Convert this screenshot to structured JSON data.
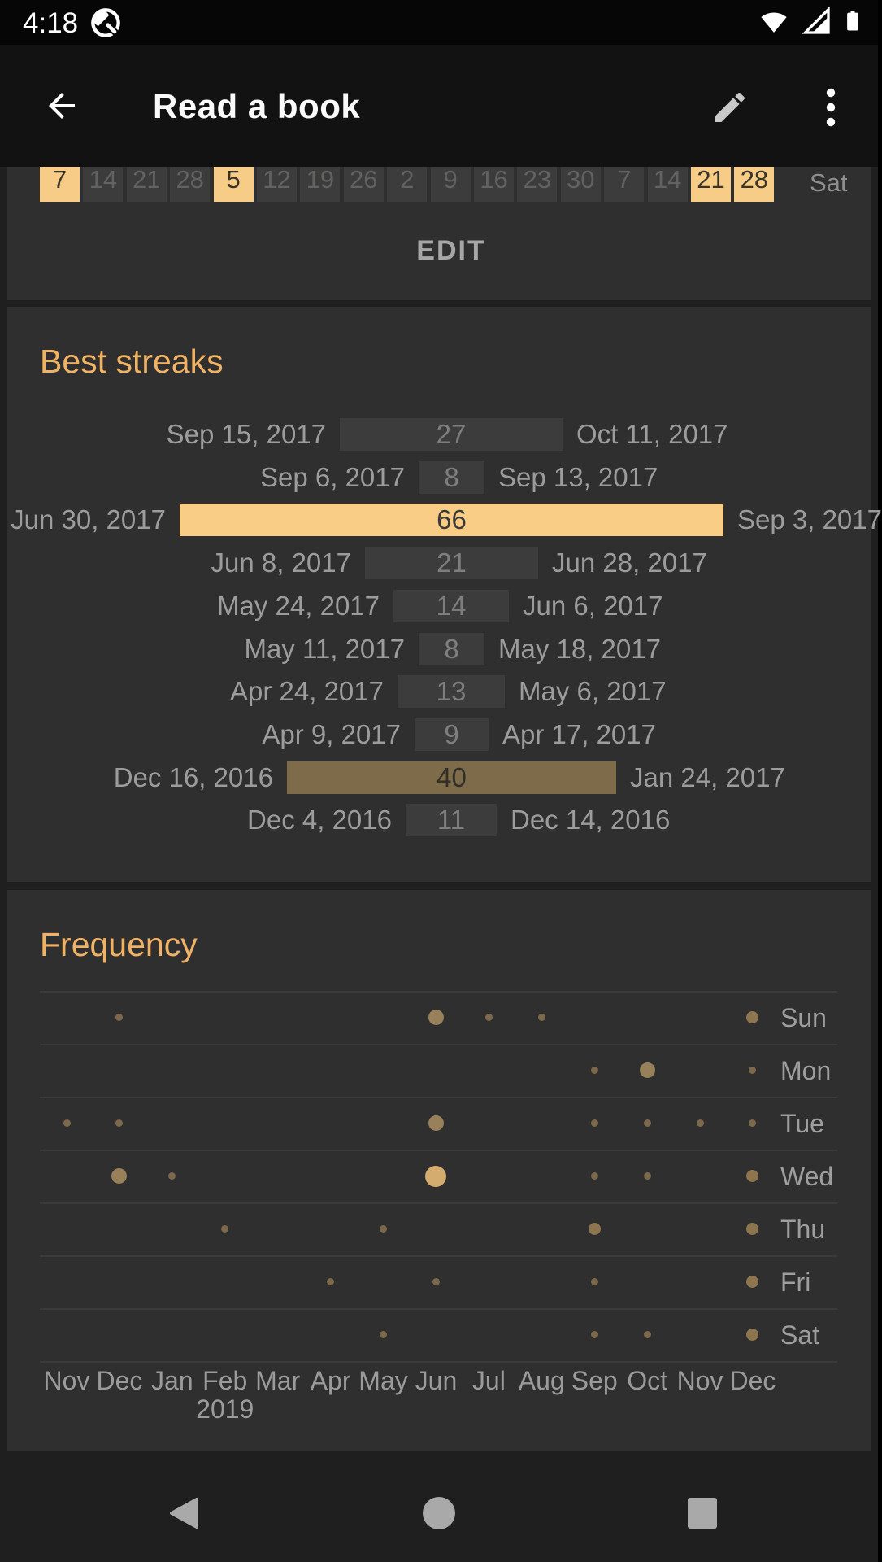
{
  "status_bar": {
    "time": "4:18"
  },
  "app_bar": {
    "title": "Read a book"
  },
  "icons": {
    "status": [
      "android-q-logo",
      "wifi",
      "cell-signal",
      "battery"
    ],
    "app_bar": [
      "back-arrow",
      "edit-pencil",
      "overflow-menu"
    ],
    "nav_bar": [
      "back-triangle",
      "home-circle",
      "recents-square"
    ]
  },
  "colors": {
    "accent_orange": "#F0B366",
    "streak_orange": "#F9CD85",
    "streak_brown": "#7E6B49",
    "streak_gray": "#3C3C3C",
    "card_background": "#2F2F2F",
    "dot_brown": "#8D7550",
    "dot_bright": "#D5AC6F"
  },
  "calendar_strip": {
    "weekday_label": "Sat",
    "cells": [
      {
        "day": "7",
        "highlighted": true
      },
      {
        "day": "14",
        "highlighted": false
      },
      {
        "day": "21",
        "highlighted": false
      },
      {
        "day": "28",
        "highlighted": false
      },
      {
        "day": "5",
        "highlighted": true
      },
      {
        "day": "12",
        "highlighted": false
      },
      {
        "day": "19",
        "highlighted": false
      },
      {
        "day": "26",
        "highlighted": false
      },
      {
        "day": "2",
        "highlighted": false
      },
      {
        "day": "9",
        "highlighted": false
      },
      {
        "day": "16",
        "highlighted": false
      },
      {
        "day": "23",
        "highlighted": false
      },
      {
        "day": "30",
        "highlighted": false
      },
      {
        "day": "7",
        "highlighted": false
      },
      {
        "day": "14",
        "highlighted": false
      },
      {
        "day": "21",
        "highlighted": true
      },
      {
        "day": "28",
        "highlighted": true
      }
    ],
    "edit_label": "EDIT"
  },
  "best_streaks": {
    "title": "Best streaks",
    "max_length": 66,
    "streaks": [
      {
        "start": "Sep 15, 2017",
        "length": 27,
        "end": "Oct 11, 2017",
        "tone": "gray"
      },
      {
        "start": "Sep 6, 2017",
        "length": 8,
        "end": "Sep 13, 2017",
        "tone": "gray"
      },
      {
        "start": "Jun 30, 2017",
        "length": 66,
        "end": "Sep 3, 2017",
        "tone": "orange"
      },
      {
        "start": "Jun 8, 2017",
        "length": 21,
        "end": "Jun 28, 2017",
        "tone": "gray"
      },
      {
        "start": "May 24, 2017",
        "length": 14,
        "end": "Jun 6, 2017",
        "tone": "gray"
      },
      {
        "start": "May 11, 2017",
        "length": 8,
        "end": "May 18, 2017",
        "tone": "gray"
      },
      {
        "start": "Apr 24, 2017",
        "length": 13,
        "end": "May 6, 2017",
        "tone": "gray"
      },
      {
        "start": "Apr 9, 2017",
        "length": 9,
        "end": "Apr 17, 2017",
        "tone": "gray"
      },
      {
        "start": "Dec 16, 2016",
        "length": 40,
        "end": "Jan 24, 2017",
        "tone": "brown"
      },
      {
        "start": "Dec 4, 2016",
        "length": 11,
        "end": "Dec 14, 2016",
        "tone": "gray"
      }
    ]
  },
  "frequency": {
    "title": "Frequency",
    "months": [
      "Nov",
      "Dec",
      "Jan",
      "Feb",
      "Mar",
      "Apr",
      "May",
      "Jun",
      "Jul",
      "Aug",
      "Sep",
      "Oct",
      "Nov",
      "Dec"
    ],
    "year_label": "2019",
    "year_month_index": 3,
    "days": [
      {
        "label": "Sun",
        "dots": [
          {
            "month": 1,
            "size": "s"
          },
          {
            "month": 7,
            "size": "l"
          },
          {
            "month": 8,
            "size": "s"
          },
          {
            "month": 9,
            "size": "s"
          },
          {
            "month": 13,
            "size": "m"
          }
        ]
      },
      {
        "label": "Mon",
        "dots": [
          {
            "month": 10,
            "size": "s"
          },
          {
            "month": 11,
            "size": "l"
          },
          {
            "month": 13,
            "size": "s"
          }
        ]
      },
      {
        "label": "Tue",
        "dots": [
          {
            "month": 0,
            "size": "s"
          },
          {
            "month": 1,
            "size": "s"
          },
          {
            "month": 7,
            "size": "l"
          },
          {
            "month": 10,
            "size": "s"
          },
          {
            "month": 11,
            "size": "s"
          },
          {
            "month": 12,
            "size": "s"
          },
          {
            "month": 13,
            "size": "s"
          }
        ]
      },
      {
        "label": "Wed",
        "dots": [
          {
            "month": 1,
            "size": "l"
          },
          {
            "month": 2,
            "size": "s"
          },
          {
            "month": 7,
            "size": "xl"
          },
          {
            "month": 10,
            "size": "s"
          },
          {
            "month": 11,
            "size": "s"
          },
          {
            "month": 13,
            "size": "m"
          }
        ]
      },
      {
        "label": "Thu",
        "dots": [
          {
            "month": 3,
            "size": "s"
          },
          {
            "month": 6,
            "size": "s"
          },
          {
            "month": 10,
            "size": "m"
          },
          {
            "month": 13,
            "size": "m"
          }
        ]
      },
      {
        "label": "Fri",
        "dots": [
          {
            "month": 5,
            "size": "s"
          },
          {
            "month": 7,
            "size": "s"
          },
          {
            "month": 10,
            "size": "s"
          },
          {
            "month": 13,
            "size": "m"
          }
        ]
      },
      {
        "label": "Sat",
        "dots": [
          {
            "month": 6,
            "size": "s"
          },
          {
            "month": 10,
            "size": "s"
          },
          {
            "month": 11,
            "size": "s"
          },
          {
            "month": 13,
            "size": "m"
          }
        ]
      }
    ]
  }
}
